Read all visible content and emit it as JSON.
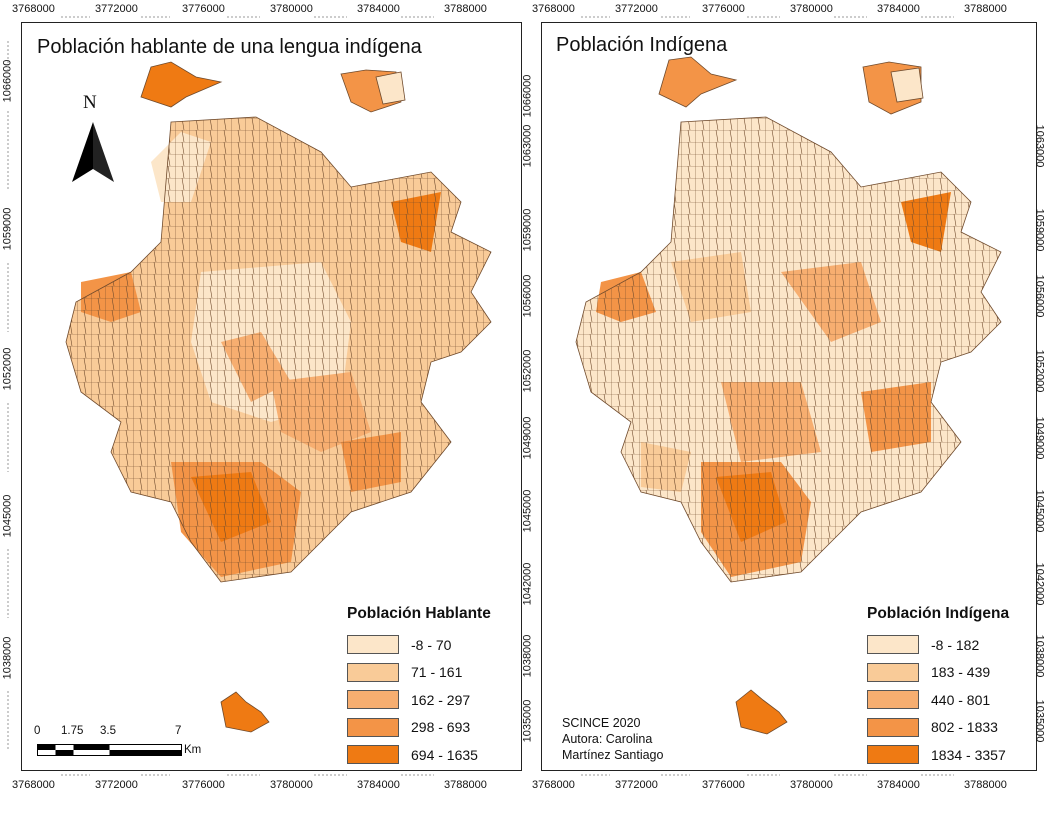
{
  "colors": {
    "class1": "#fce6c9",
    "class2": "#f9cb98",
    "class3": "#f7ae70",
    "class4": "#f39447",
    "class5": "#ef7a13",
    "border": "#6f4a2c"
  },
  "left_map": {
    "title": "Población hablante de una lengua indígena",
    "north_label": "N",
    "legend_title": "Población Hablante",
    "classes": [
      "-8 - 70",
      "71 - 161",
      "162 - 297",
      "298 - 693",
      "694 - 1635"
    ],
    "scale": {
      "labels": [
        "0",
        "1.75",
        "3.5",
        "7"
      ],
      "unit": "Km"
    },
    "x_ticks": [
      "3768000",
      "3772000",
      "3776000",
      "3780000",
      "3784000",
      "3788000"
    ],
    "y_ticks": [
      "1066000",
      "1063000",
      "1059000",
      "1056000",
      "1052000",
      "1049000",
      "1045000",
      "1042000",
      "1038000",
      "1035000"
    ]
  },
  "right_map": {
    "title": "Población Indígena",
    "legend_title": "Población Indígena",
    "classes": [
      "-8 - 182",
      "183 - 439",
      "440 - 801",
      "802 - 1833",
      "1834 - 3357"
    ],
    "credit": [
      "SCINCE 2020",
      "Autora: Carolina",
      "Martínez Santiago"
    ],
    "x_ticks": [
      "3768000",
      "3772000",
      "3776000",
      "3780000",
      "3784000",
      "3788000"
    ],
    "y_ticks_left": [
      "1066000",
      "1063000",
      "1059000",
      "1056000",
      "1052000",
      "1049000",
      "1045000",
      "1042000",
      "1038000",
      "1035000"
    ],
    "y_ticks_right": [
      "1063000",
      "1059000",
      "1056000",
      "1052000",
      "1049000",
      "1045000",
      "1042000",
      "1038000",
      "1035000"
    ]
  }
}
